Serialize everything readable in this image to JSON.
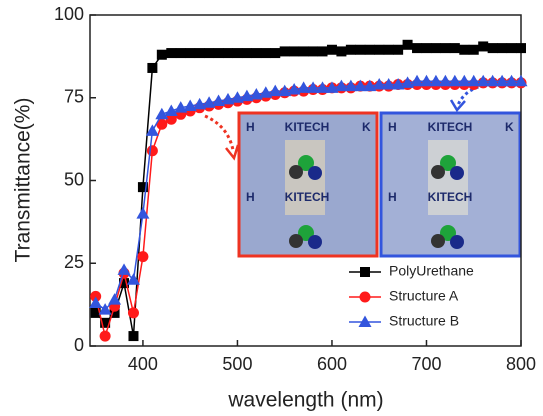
{
  "chart_data": {
    "type": "line",
    "xlabel": "wavelength (nm)",
    "ylabel": "Transmittance(%)",
    "xlim": [
      344,
      800
    ],
    "ylim": [
      0,
      100
    ],
    "xticks": [
      400,
      500,
      600,
      700,
      800
    ],
    "yticks": [
      0,
      25,
      50,
      75,
      100
    ],
    "legend": "lower right",
    "inset_text": [
      "KITECH",
      "H",
      "K"
    ],
    "x": [
      350,
      360,
      370,
      380,
      390,
      400,
      410,
      420,
      430,
      440,
      450,
      460,
      470,
      480,
      490,
      500,
      510,
      520,
      530,
      540,
      550,
      560,
      570,
      580,
      590,
      600,
      610,
      620,
      630,
      640,
      650,
      660,
      670,
      680,
      690,
      700,
      710,
      720,
      730,
      740,
      750,
      760,
      770,
      780,
      790,
      800
    ],
    "series": [
      {
        "name": "PolyUrethane",
        "color": "#000000",
        "marker": "square",
        "values": [
          10,
          7,
          10,
          19,
          3,
          48,
          84,
          88,
          88.5,
          88.5,
          88.5,
          88.5,
          88.5,
          88.5,
          88.5,
          88.5,
          88.5,
          88.5,
          88.5,
          88.5,
          89,
          89,
          89,
          89,
          89,
          89.5,
          89,
          89.5,
          89.5,
          89.5,
          89.5,
          89.5,
          89.5,
          91,
          90,
          90,
          90,
          90,
          90,
          89.5,
          89.5,
          90.5,
          90,
          90,
          90,
          90
        ]
      },
      {
        "name": "Structure A",
        "color": "#ff1a1a",
        "marker": "circle",
        "values": [
          15,
          3,
          12,
          22,
          10,
          27,
          59,
          67,
          68.5,
          70,
          71,
          72,
          72.5,
          73,
          73.5,
          74,
          74.5,
          75,
          75.5,
          76,
          76.5,
          77,
          77,
          77.5,
          77.5,
          78,
          78,
          78,
          78.5,
          78.5,
          78.5,
          78.5,
          79,
          79,
          79,
          79,
          79,
          79,
          79,
          79,
          79,
          79.5,
          79.5,
          79.5,
          79.5,
          79.5
        ]
      },
      {
        "name": "Structure B",
        "color": "#3355dd",
        "marker": "triangle",
        "values": [
          13,
          11,
          14,
          23,
          20,
          40,
          65,
          70,
          71,
          72,
          72.5,
          73,
          73.5,
          74,
          74.5,
          75,
          75.5,
          76,
          76.5,
          77,
          77,
          77.5,
          78,
          78,
          78,
          78,
          78.5,
          78.5,
          78.5,
          78.5,
          79,
          79,
          79,
          79.5,
          80,
          80,
          80,
          80,
          80,
          80,
          80,
          80,
          80,
          80,
          80,
          80
        ]
      }
    ]
  }
}
